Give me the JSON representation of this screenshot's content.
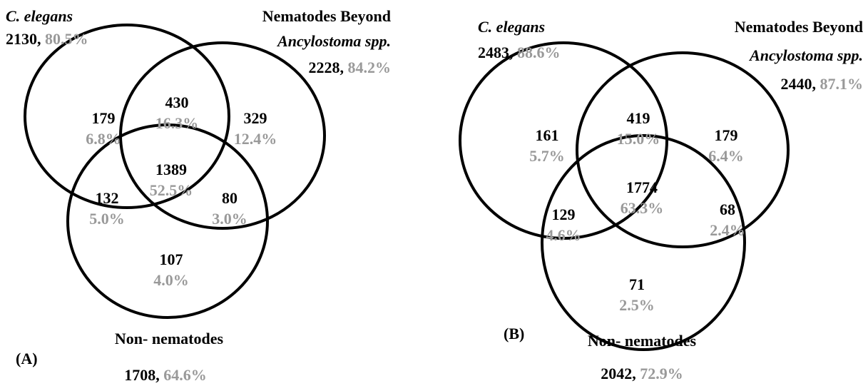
{
  "panels": [
    {
      "label": "(A)",
      "sets": [
        {
          "name": "C. elegans",
          "total": "2130,",
          "percent": "80.5%"
        },
        {
          "name": "Nematodes Beyond",
          "subname": "Ancylostoma spp.",
          "total": "2228,",
          "percent": "84.2%"
        },
        {
          "name": "Non- nematodes",
          "total": "1708,",
          "percent": "64.6%"
        }
      ],
      "regions": [
        {
          "count": 179,
          "percent": "6.8%"
        },
        {
          "count": 430,
          "percent": "16.3%"
        },
        {
          "count": 329,
          "percent": "12.4%"
        },
        {
          "count": 1389,
          "percent": "52.5%"
        },
        {
          "count": 132,
          "percent": "5.0%"
        },
        {
          "count": 80,
          "percent": "3.0%"
        },
        {
          "count": 107,
          "percent": "4.0%"
        }
      ]
    },
    {
      "label": "(B)",
      "sets": [
        {
          "name": "C. elegans",
          "total": "2483,",
          "percent": "88.6%"
        },
        {
          "name": "Nematodes Beyond",
          "subname": "Ancylostoma spp.",
          "total": "2440,",
          "percent": "87.1%"
        },
        {
          "name": "Non- nematodes",
          "total": "2042,",
          "percent": "72.9%"
        }
      ],
      "regions": [
        {
          "count": 161,
          "percent": "5.7%"
        },
        {
          "count": 419,
          "percent": "15.0%"
        },
        {
          "count": 179,
          "percent": "6.4%"
        },
        {
          "count": 1774,
          "percent": "63.3%"
        },
        {
          "count": 129,
          "percent": "4.6%"
        },
        {
          "count": 68,
          "percent": "2.4%"
        },
        {
          "count": 71,
          "percent": "2.5%"
        }
      ]
    }
  ]
}
